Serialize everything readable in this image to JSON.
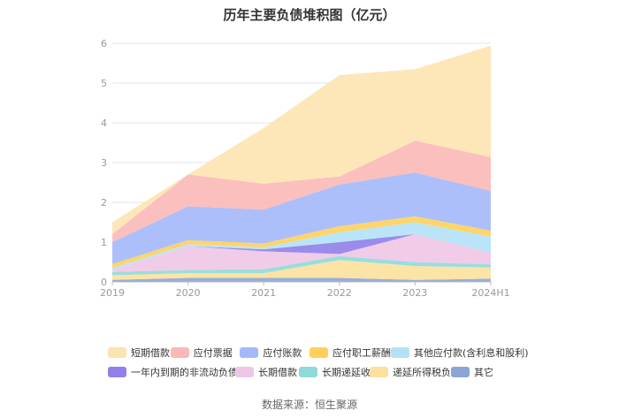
{
  "chart_data": {
    "type": "area",
    "stacked": true,
    "title": "历年主要负债堆积图（亿元）",
    "categories": [
      "2019",
      "2020",
      "2021",
      "2022",
      "2023",
      "2024H1"
    ],
    "ylim": [
      0,
      6
    ],
    "yticks": [
      0,
      1,
      2,
      3,
      4,
      5,
      6
    ],
    "grid": true,
    "legend_position": "bottom",
    "series": [
      {
        "name": "其它",
        "color": "#8CA5D5",
        "values": [
          0.05,
          0.1,
          0.1,
          0.1,
          0.05,
          0.08
        ]
      },
      {
        "name": "递延所得税负债",
        "color": "#FCE09C",
        "values": [
          0.12,
          0.12,
          0.12,
          0.45,
          0.35,
          0.28
        ]
      },
      {
        "name": "长期递延收益",
        "color": "#8FD9D9",
        "values": [
          0.08,
          0.08,
          0.1,
          0.1,
          0.1,
          0.08
        ]
      },
      {
        "name": "长期借款",
        "color": "#F0C6E6",
        "values": [
          0.05,
          0.6,
          0.45,
          0.05,
          0.7,
          0.3
        ]
      },
      {
        "name": "一年内到期的非流动负债",
        "color": "#9080EA",
        "values": [
          0.0,
          0.0,
          0.05,
          0.3,
          0.0,
          0.0
        ]
      },
      {
        "name": "其他应付款(含利息和股利)",
        "color": "#B3E2F7",
        "values": [
          0.05,
          0.05,
          0.05,
          0.25,
          0.3,
          0.4
        ]
      },
      {
        "name": "应付职工薪酬",
        "color": "#FFD05A",
        "values": [
          0.1,
          0.1,
          0.1,
          0.15,
          0.15,
          0.15
        ]
      },
      {
        "name": "应付账款",
        "color": "#A4B8FB",
        "values": [
          0.55,
          0.85,
          0.85,
          1.05,
          1.1,
          1.0
        ]
      },
      {
        "name": "应付票据",
        "color": "#FBB8B6",
        "values": [
          0.2,
          0.8,
          0.65,
          0.2,
          0.8,
          0.85
        ]
      },
      {
        "name": "短期借款",
        "color": "#FDE3B0",
        "values": [
          0.3,
          0.0,
          1.4,
          2.55,
          1.8,
          2.8
        ]
      }
    ],
    "legend": [
      [
        "短期借款",
        "应付票据",
        "应付账款",
        "应付职工薪酬",
        "其他应付款(含利息和股利)"
      ],
      [
        "一年内到期的非流动负债",
        "长期借款",
        "长期递延收益",
        "递延所得税负债",
        "其它"
      ]
    ]
  },
  "source": "数据来源：恒生聚源"
}
